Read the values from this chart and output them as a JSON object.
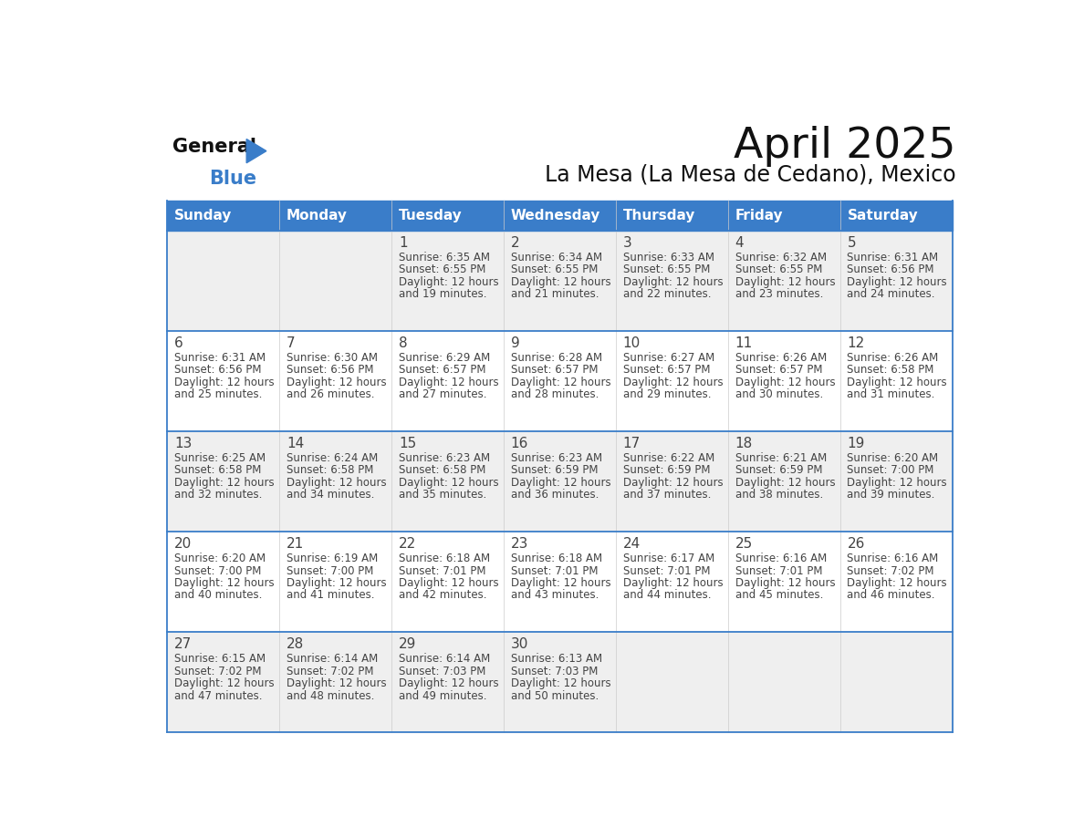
{
  "title": "April 2025",
  "subtitle": "La Mesa (La Mesa de Cedano), Mexico",
  "header_bg": "#3A7DC9",
  "header_text_color": "#FFFFFF",
  "header_days": [
    "Sunday",
    "Monday",
    "Tuesday",
    "Wednesday",
    "Thursday",
    "Friday",
    "Saturday"
  ],
  "row_bg_odd": "#EFEFEF",
  "row_bg_even": "#FFFFFF",
  "cell_text_color": "#444444",
  "separator_color": "#3A7DC9",
  "days": [
    {
      "day": 1,
      "col": 2,
      "row": 0,
      "sunrise": "6:35 AM",
      "sunset": "6:55 PM",
      "daylight_min": "19 minutes."
    },
    {
      "day": 2,
      "col": 3,
      "row": 0,
      "sunrise": "6:34 AM",
      "sunset": "6:55 PM",
      "daylight_min": "21 minutes."
    },
    {
      "day": 3,
      "col": 4,
      "row": 0,
      "sunrise": "6:33 AM",
      "sunset": "6:55 PM",
      "daylight_min": "22 minutes."
    },
    {
      "day": 4,
      "col": 5,
      "row": 0,
      "sunrise": "6:32 AM",
      "sunset": "6:55 PM",
      "daylight_min": "23 minutes."
    },
    {
      "day": 5,
      "col": 6,
      "row": 0,
      "sunrise": "6:31 AM",
      "sunset": "6:56 PM",
      "daylight_min": "24 minutes."
    },
    {
      "day": 6,
      "col": 0,
      "row": 1,
      "sunrise": "6:31 AM",
      "sunset": "6:56 PM",
      "daylight_min": "25 minutes."
    },
    {
      "day": 7,
      "col": 1,
      "row": 1,
      "sunrise": "6:30 AM",
      "sunset": "6:56 PM",
      "daylight_min": "26 minutes."
    },
    {
      "day": 8,
      "col": 2,
      "row": 1,
      "sunrise": "6:29 AM",
      "sunset": "6:57 PM",
      "daylight_min": "27 minutes."
    },
    {
      "day": 9,
      "col": 3,
      "row": 1,
      "sunrise": "6:28 AM",
      "sunset": "6:57 PM",
      "daylight_min": "28 minutes."
    },
    {
      "day": 10,
      "col": 4,
      "row": 1,
      "sunrise": "6:27 AM",
      "sunset": "6:57 PM",
      "daylight_min": "29 minutes."
    },
    {
      "day": 11,
      "col": 5,
      "row": 1,
      "sunrise": "6:26 AM",
      "sunset": "6:57 PM",
      "daylight_min": "30 minutes."
    },
    {
      "day": 12,
      "col": 6,
      "row": 1,
      "sunrise": "6:26 AM",
      "sunset": "6:58 PM",
      "daylight_min": "31 minutes."
    },
    {
      "day": 13,
      "col": 0,
      "row": 2,
      "sunrise": "6:25 AM",
      "sunset": "6:58 PM",
      "daylight_min": "32 minutes."
    },
    {
      "day": 14,
      "col": 1,
      "row": 2,
      "sunrise": "6:24 AM",
      "sunset": "6:58 PM",
      "daylight_min": "34 minutes."
    },
    {
      "day": 15,
      "col": 2,
      "row": 2,
      "sunrise": "6:23 AM",
      "sunset": "6:58 PM",
      "daylight_min": "35 minutes."
    },
    {
      "day": 16,
      "col": 3,
      "row": 2,
      "sunrise": "6:23 AM",
      "sunset": "6:59 PM",
      "daylight_min": "36 minutes."
    },
    {
      "day": 17,
      "col": 4,
      "row": 2,
      "sunrise": "6:22 AM",
      "sunset": "6:59 PM",
      "daylight_min": "37 minutes."
    },
    {
      "day": 18,
      "col": 5,
      "row": 2,
      "sunrise": "6:21 AM",
      "sunset": "6:59 PM",
      "daylight_min": "38 minutes."
    },
    {
      "day": 19,
      "col": 6,
      "row": 2,
      "sunrise": "6:20 AM",
      "sunset": "7:00 PM",
      "daylight_min": "39 minutes."
    },
    {
      "day": 20,
      "col": 0,
      "row": 3,
      "sunrise": "6:20 AM",
      "sunset": "7:00 PM",
      "daylight_min": "40 minutes."
    },
    {
      "day": 21,
      "col": 1,
      "row": 3,
      "sunrise": "6:19 AM",
      "sunset": "7:00 PM",
      "daylight_min": "41 minutes."
    },
    {
      "day": 22,
      "col": 2,
      "row": 3,
      "sunrise": "6:18 AM",
      "sunset": "7:01 PM",
      "daylight_min": "42 minutes."
    },
    {
      "day": 23,
      "col": 3,
      "row": 3,
      "sunrise": "6:18 AM",
      "sunset": "7:01 PM",
      "daylight_min": "43 minutes."
    },
    {
      "day": 24,
      "col": 4,
      "row": 3,
      "sunrise": "6:17 AM",
      "sunset": "7:01 PM",
      "daylight_min": "44 minutes."
    },
    {
      "day": 25,
      "col": 5,
      "row": 3,
      "sunrise": "6:16 AM",
      "sunset": "7:01 PM",
      "daylight_min": "45 minutes."
    },
    {
      "day": 26,
      "col": 6,
      "row": 3,
      "sunrise": "6:16 AM",
      "sunset": "7:02 PM",
      "daylight_min": "46 minutes."
    },
    {
      "day": 27,
      "col": 0,
      "row": 4,
      "sunrise": "6:15 AM",
      "sunset": "7:02 PM",
      "daylight_min": "47 minutes."
    },
    {
      "day": 28,
      "col": 1,
      "row": 4,
      "sunrise": "6:14 AM",
      "sunset": "7:02 PM",
      "daylight_min": "48 minutes."
    },
    {
      "day": 29,
      "col": 2,
      "row": 4,
      "sunrise": "6:14 AM",
      "sunset": "7:03 PM",
      "daylight_min": "49 minutes."
    },
    {
      "day": 30,
      "col": 3,
      "row": 4,
      "sunrise": "6:13 AM",
      "sunset": "7:03 PM",
      "daylight_min": "50 minutes."
    }
  ],
  "n_rows": 5,
  "n_cols": 7
}
